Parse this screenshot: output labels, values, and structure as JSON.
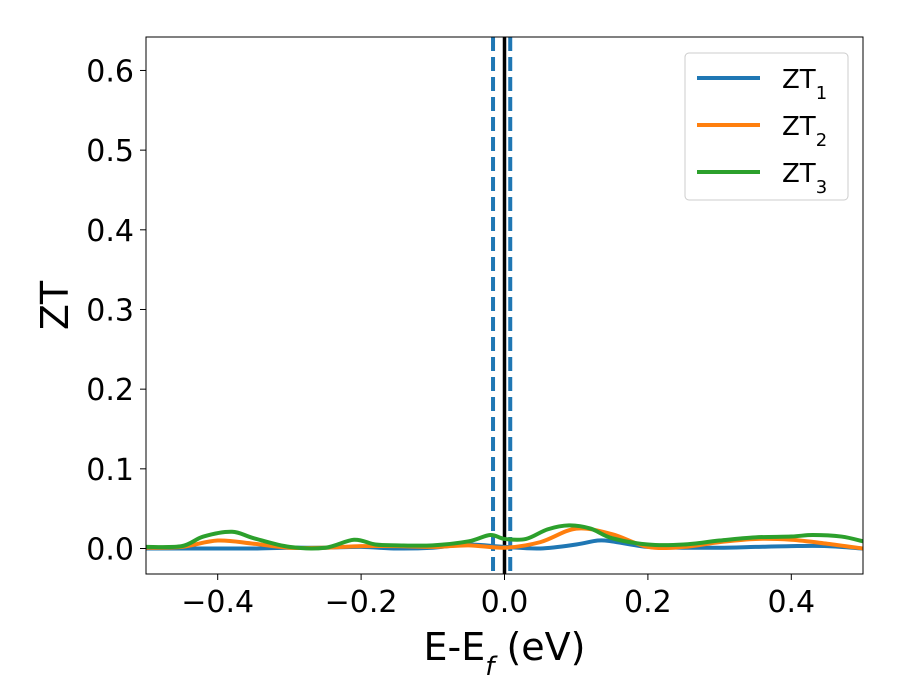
{
  "chart_data": {
    "type": "line",
    "xlabel": "E-E",
    "xlabel_sub": "f",
    "xlabel_unit": " (eV)",
    "ylabel": "ZT",
    "xlim": [
      -0.5,
      0.5
    ],
    "ylim": [
      -0.032,
      0.642
    ],
    "x_ticks": [
      -0.4,
      -0.2,
      0.0,
      0.2,
      0.4
    ],
    "x_tick_labels": [
      "−0.4",
      "−0.2",
      "0.0",
      "0.2",
      "0.4"
    ],
    "y_ticks": [
      0.0,
      0.1,
      0.2,
      0.3,
      0.4,
      0.5,
      0.6
    ],
    "y_tick_labels": [
      "0.0",
      "0.1",
      "0.2",
      "0.3",
      "0.4",
      "0.5",
      "0.6"
    ],
    "grid": false,
    "legend_position": "top-right",
    "reference_lines": [
      {
        "x": 0.0,
        "style": "solid",
        "color": "#000000"
      },
      {
        "x": -0.016,
        "style": "dashed",
        "color": "#1f77b4"
      },
      {
        "x": 0.008,
        "style": "dashed",
        "color": "#1f77b4"
      }
    ],
    "series": [
      {
        "name": "ZT",
        "name_sub": "1",
        "color": "#1f77b4",
        "x": [
          -0.5,
          -0.45,
          -0.4,
          -0.35,
          -0.3,
          -0.25,
          -0.2,
          -0.15,
          -0.1,
          -0.05,
          0.0,
          0.05,
          0.1,
          0.13,
          0.15,
          0.2,
          0.25,
          0.3,
          0.35,
          0.4,
          0.45,
          0.5
        ],
        "y": [
          0.0,
          0.0,
          0.0,
          0.0,
          0.001,
          0.001,
          0.002,
          0.0,
          0.001,
          0.005,
          0.002,
          0.0,
          0.005,
          0.01,
          0.009,
          0.002,
          0.001,
          0.001,
          0.002,
          0.003,
          0.003,
          0.0
        ]
      },
      {
        "name": "ZT",
        "name_sub": "2",
        "color": "#ff7f0e",
        "x": [
          -0.5,
          -0.45,
          -0.4,
          -0.35,
          -0.3,
          -0.25,
          -0.2,
          -0.15,
          -0.1,
          -0.05,
          0.0,
          0.05,
          0.1,
          0.15,
          0.2,
          0.25,
          0.3,
          0.35,
          0.4,
          0.45,
          0.5
        ],
        "y": [
          0.001,
          0.002,
          0.01,
          0.006,
          0.001,
          0.001,
          0.003,
          0.003,
          0.002,
          0.004,
          0.001,
          0.008,
          0.025,
          0.018,
          0.002,
          0.002,
          0.008,
          0.012,
          0.011,
          0.006,
          0.0
        ]
      },
      {
        "name": "ZT",
        "name_sub": "3",
        "color": "#2ca02c",
        "x": [
          -0.5,
          -0.45,
          -0.42,
          -0.38,
          -0.35,
          -0.3,
          -0.25,
          -0.21,
          -0.18,
          -0.15,
          -0.1,
          -0.05,
          -0.02,
          0.0,
          0.03,
          0.06,
          0.09,
          0.12,
          0.15,
          0.2,
          0.25,
          0.3,
          0.35,
          0.4,
          0.43,
          0.47,
          0.5
        ],
        "y": [
          0.002,
          0.003,
          0.015,
          0.021,
          0.013,
          0.002,
          0.001,
          0.011,
          0.005,
          0.004,
          0.004,
          0.009,
          0.017,
          0.012,
          0.012,
          0.024,
          0.029,
          0.025,
          0.013,
          0.005,
          0.005,
          0.01,
          0.014,
          0.015,
          0.017,
          0.015,
          0.009
        ]
      }
    ]
  }
}
